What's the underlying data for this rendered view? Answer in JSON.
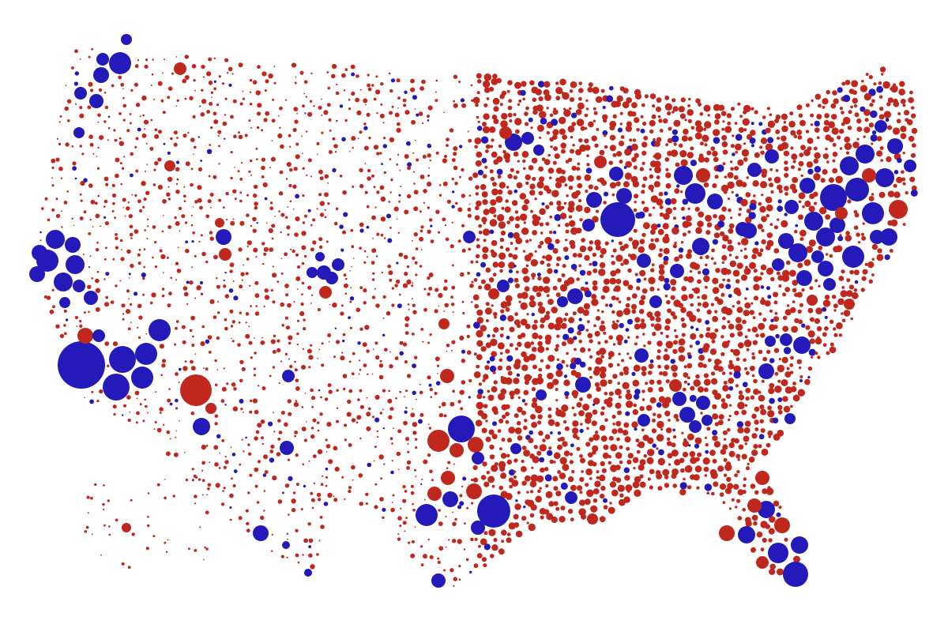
{
  "map": {
    "colors": [
      "#c1281d",
      "#2419b9"
    ]
  }
}
